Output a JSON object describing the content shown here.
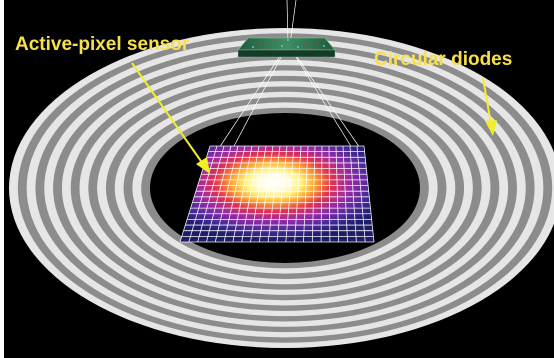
{
  "labels": {
    "active_pixel_sensor": "Active-pixel sensor",
    "circular_diodes": "Circular diodes"
  },
  "colors": {
    "background": "#000000",
    "label_text": "#f7e04a",
    "arrow": "#f2ef2a",
    "ring_light": "#e6e6e6",
    "ring_dark": "#8c8c8c",
    "grid_line": "#ffffff"
  },
  "rings": {
    "count": 8
  },
  "grid": {
    "columns": 22,
    "rows": 17
  }
}
